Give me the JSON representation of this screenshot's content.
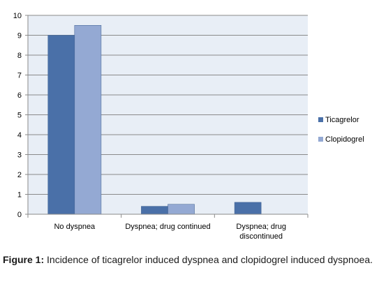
{
  "chart_data": {
    "type": "bar",
    "categories": [
      "No dyspnea",
      "Dyspnea; drug continued",
      "Dyspnea; drug discontinued"
    ],
    "category_lines": [
      [
        "No dyspnea"
      ],
      [
        "Dyspnea; drug continued"
      ],
      [
        "Dyspnea; drug",
        "discontinued"
      ]
    ],
    "series": [
      {
        "name": "Ticagrelor",
        "values": [
          9,
          0.4,
          0.6
        ],
        "color": "#4a70a8"
      },
      {
        "name": "Clopidogrel",
        "values": [
          9.5,
          0.5,
          0
        ],
        "color": "#94a9d3"
      }
    ],
    "ylim": [
      0,
      10
    ],
    "yticks": [
      "0",
      "1",
      "2",
      "3",
      "4",
      "5",
      "6",
      "7",
      "8",
      "9",
      "10"
    ],
    "grid": true,
    "legend_position": "right",
    "plot_background": "#e8eef6"
  },
  "caption": {
    "label": "Figure 1:",
    "text": " Incidence of ticagrelor induced dyspnea and clopidogrel induced dyspnoea."
  }
}
